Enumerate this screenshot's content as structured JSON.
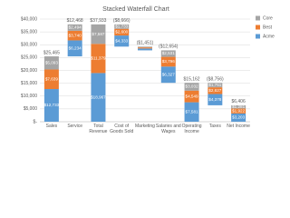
{
  "chart_data": {
    "type": "waterfall",
    "title": "Stacked Waterfall Chart",
    "categories": [
      "Sales",
      "Service",
      "Total Revenue",
      "Cost of Goods Sold",
      "Marketing",
      "Salaries and Wages",
      "Operating Income",
      "Taxes",
      "Net Income"
    ],
    "series": [
      {
        "name": "Core",
        "color": "#a5a5a5",
        "values": [
          5093,
          2494,
          7587,
          -1733,
          -290,
          -2531,
          3032,
          -1751,
          1281
        ],
        "value_labels": [
          "$5,093",
          "$2,494",
          "$7,587",
          "$1,733",
          null,
          "$2,531",
          "$3,032",
          "$1,751",
          "$1,281"
        ]
      },
      {
        "name": "Best",
        "color": "#ed7d31",
        "values": [
          7639,
          3740,
          11379,
          -2600,
          -435,
          -3796,
          4549,
          -2627,
          1922
        ],
        "value_labels": [
          "$7,639",
          "$3,740",
          "$11,379",
          "$2,600",
          null,
          "$3,796",
          "$4,549",
          "$2,627",
          "$1,922"
        ]
      },
      {
        "name": "Acme",
        "color": "#5b9bd5",
        "values": [
          12733,
          6234,
          18967,
          -4333,
          -726,
          -6327,
          7581,
          -4378,
          3203
        ],
        "value_labels": [
          "$12,733",
          "$6,234",
          "$18,967",
          "$4,333",
          null,
          "$6,327",
          "$7,581",
          "$4,378",
          "$3,203"
        ]
      }
    ],
    "totals": {
      "values": [
        25465,
        12468,
        37933,
        -8666,
        -1451,
        -12654,
        15162,
        -8756,
        6406
      ],
      "value_labels": [
        "$25,465",
        "$12,468",
        "$37,933",
        "($8,666)",
        "($1,451)",
        "($12,654)",
        "$15,162",
        "($8,756)",
        "$6,406"
      ]
    },
    "ylim": [
      0,
      40000
    ],
    "yticks": [
      {
        "value": 0,
        "label": "$-"
      },
      {
        "value": 5000,
        "label": "$5,000"
      },
      {
        "value": 10000,
        "label": "$10,000"
      },
      {
        "value": 15000,
        "label": "$15,000"
      },
      {
        "value": 20000,
        "label": "$20,000"
      },
      {
        "value": 25000,
        "label": "$25,000"
      },
      {
        "value": 30000,
        "label": "$30,000"
      },
      {
        "value": 35000,
        "label": "$35,000"
      },
      {
        "value": 40000,
        "label": "$40,000"
      }
    ],
    "grid": true,
    "legend": "right"
  }
}
